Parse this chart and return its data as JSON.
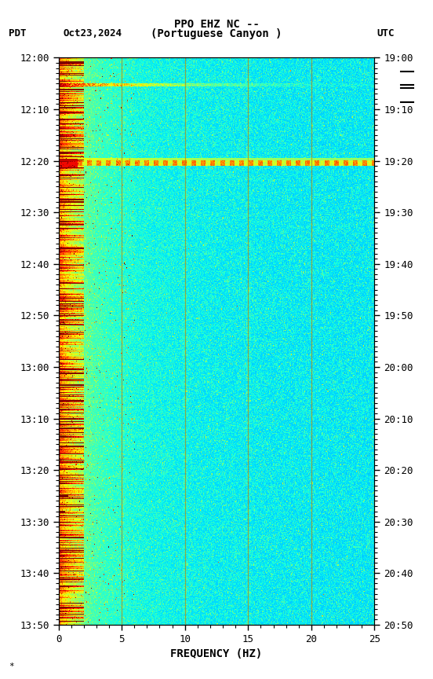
{
  "title_line1": "PPO EHZ NC --",
  "title_line2": "(Portuguese Canyon )",
  "left_label": "PDT",
  "date_label": "Oct23,2024",
  "right_label": "UTC",
  "xlabel": "FREQUENCY (HZ)",
  "left_times": [
    "12:00",
    "12:10",
    "12:20",
    "12:30",
    "12:40",
    "12:50",
    "13:00",
    "13:10",
    "13:20",
    "13:30",
    "13:40",
    "13:50"
  ],
  "right_times": [
    "19:00",
    "19:10",
    "19:20",
    "19:30",
    "19:40",
    "19:50",
    "20:00",
    "20:10",
    "20:20",
    "20:30",
    "20:40",
    "20:50"
  ],
  "freq_min": 0,
  "freq_max": 25,
  "freq_ticks": [
    0,
    5,
    10,
    15,
    20,
    25
  ],
  "time_duration_minutes": 110,
  "fig_width": 5.52,
  "fig_height": 8.64,
  "colormap": "jet",
  "vertical_lines_freq": [
    5.0,
    10.0,
    15.0,
    20.0
  ],
  "vertical_line_color": "#b8860b",
  "vertical_line_alpha": 0.7,
  "tick_label_fontsize": 9,
  "title_fontsize": 10,
  "label_fontsize": 9,
  "vmin": 0.0,
  "vmax": 1.0
}
